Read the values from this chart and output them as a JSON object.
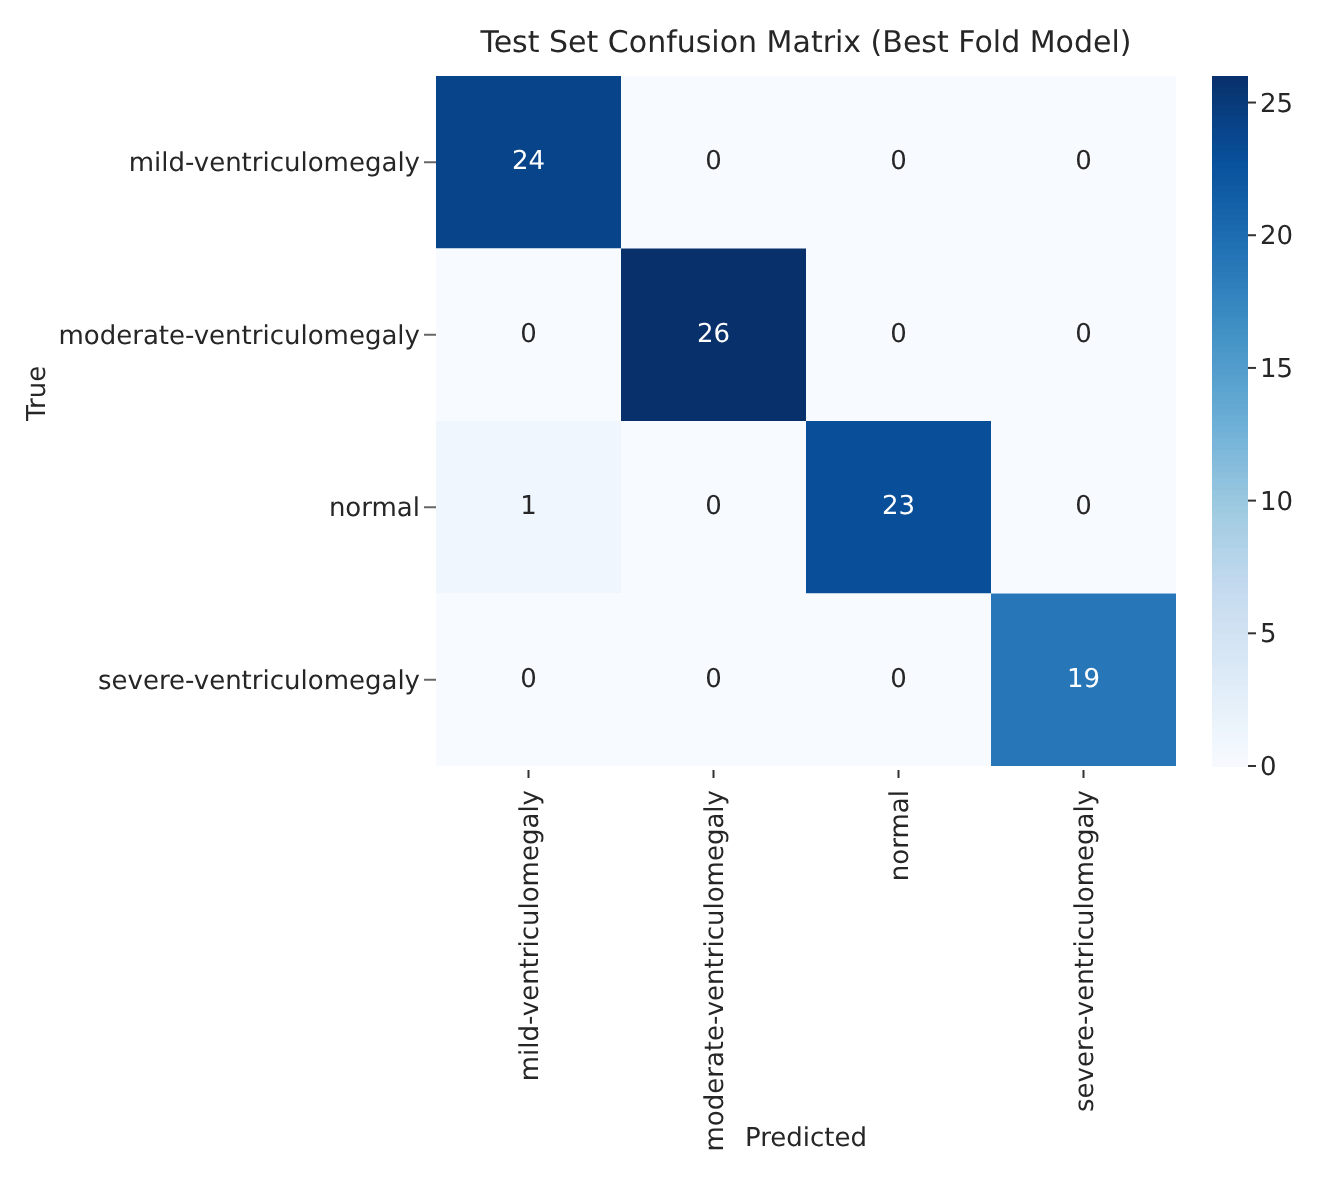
{
  "chart_data": {
    "type": "heatmap",
    "title": "Test Set Confusion Matrix (Best Fold Model)",
    "xlabel": "Predicted",
    "ylabel": "True",
    "categories": [
      "mild-ventriculomegaly",
      "moderate-ventriculomegaly",
      "normal",
      "severe-ventriculomegaly"
    ],
    "y_categories": [
      "mild-ventriculomegaly",
      "moderate-ventriculomegaly",
      "normal",
      "severe-ventriculomegaly"
    ],
    "cells": [
      [
        24,
        0,
        0,
        0
      ],
      [
        0,
        26,
        0,
        0
      ],
      [
        1,
        0,
        23,
        0
      ],
      [
        0,
        0,
        0,
        19
      ]
    ],
    "clim": [
      0,
      26
    ],
    "cticks": [
      0,
      5,
      10,
      15,
      20,
      25
    ],
    "data_labels": true
  }
}
